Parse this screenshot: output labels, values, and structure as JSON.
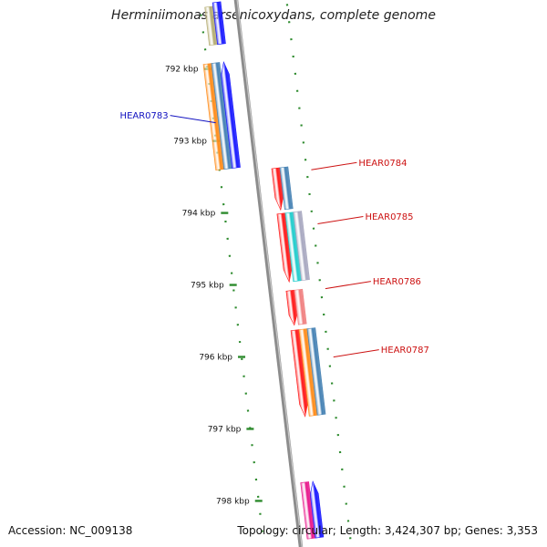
{
  "title": "Herminiimonas arsenicoxydans, complete genome",
  "footer": {
    "accession": "Accession: NC_009138",
    "summary": "Topology: circular; Length: 3,424,307 bp; Genes: 3,353"
  },
  "map": {
    "backbone_color": "#8c8c8c",
    "dot_color": "#2e8b2e",
    "ticks": [
      {
        "kbp": 792,
        "label": "792 kbp"
      },
      {
        "kbp": 793,
        "label": "793 kbp"
      },
      {
        "kbp": 794,
        "label": "794 kbp"
      },
      {
        "kbp": 795,
        "label": "795 kbp"
      },
      {
        "kbp": 796,
        "label": "796 kbp"
      },
      {
        "kbp": 797,
        "label": "797 kbp"
      },
      {
        "kbp": 798,
        "label": "798 kbp"
      }
    ],
    "labels": [
      {
        "text": "HEAR0783",
        "color": "#1010c0",
        "side": "left",
        "kbp": 792.75
      },
      {
        "text": "HEAR0784",
        "color": "#cc1111",
        "side": "right",
        "kbp": 793.55
      },
      {
        "text": "HEAR0785",
        "color": "#cc1111",
        "side": "right",
        "kbp": 794.3
      },
      {
        "text": "HEAR0786",
        "color": "#cc1111",
        "side": "right",
        "kbp": 795.2
      },
      {
        "text": "HEAR0787",
        "color": "#cc1111",
        "side": "right",
        "kbp": 796.15
      }
    ],
    "features": [
      {
        "name": "olive-bar",
        "side": "left",
        "lane": 2,
        "start": 791.15,
        "end": 791.68,
        "color": "#b5ad73",
        "arrow": false
      },
      {
        "name": "blue-arrow-top",
        "side": "left",
        "lane": 1,
        "start": 791.1,
        "end": 791.68,
        "color": "#1a1aff",
        "arrow": false
      },
      {
        "name": "orange-bar",
        "side": "left",
        "lane": 3,
        "start": 791.93,
        "end": 793.4,
        "color": "#ff8c1a",
        "arrow": false
      },
      {
        "name": "steelblue-bar",
        "side": "left",
        "lane": 2,
        "start": 791.93,
        "end": 793.4,
        "color": "#4682b4",
        "arrow": false
      },
      {
        "name": "blue-arrow-hear0783",
        "side": "left",
        "lane": 1,
        "start": 791.93,
        "end": 793.4,
        "color": "#1a1aff",
        "arrow": "up"
      },
      {
        "name": "red-arrow-hear0784",
        "side": "right",
        "lane": 1,
        "start": 793.47,
        "end": 794.05,
        "color": "#ff1a1a",
        "arrow": "down"
      },
      {
        "name": "steelblue-bar-hear0784",
        "side": "right",
        "lane": 2,
        "start": 793.47,
        "end": 794.05,
        "color": "#4682b4",
        "arrow": false
      },
      {
        "name": "red-arrow-hear0785",
        "side": "right",
        "lane": 1,
        "start": 794.1,
        "end": 795.05,
        "color": "#ff1a1a",
        "arrow": "down"
      },
      {
        "name": "cyan-bar-hear0785",
        "side": "right",
        "lane": 2,
        "start": 794.1,
        "end": 795.05,
        "color": "#22cccc",
        "arrow": false
      },
      {
        "name": "gray-bar-hear0785",
        "side": "right",
        "lane": 3,
        "start": 794.1,
        "end": 795.05,
        "color": "#a8a8c0",
        "arrow": false
      },
      {
        "name": "red-arrow-hear0786",
        "side": "right",
        "lane": 1,
        "start": 795.17,
        "end": 795.65,
        "color": "#ff1a1a",
        "arrow": "down"
      },
      {
        "name": "pink-bar-hear0786",
        "side": "right",
        "lane": 2,
        "start": 795.17,
        "end": 795.65,
        "color": "#f08080",
        "arrow": false
      },
      {
        "name": "red-arrow-hear0787",
        "side": "right",
        "lane": 1,
        "start": 795.72,
        "end": 796.92,
        "color": "#ff1a1a",
        "arrow": "down"
      },
      {
        "name": "orange-bar-hear0787",
        "side": "right",
        "lane": 2,
        "start": 795.72,
        "end": 796.92,
        "color": "#ff8c1a",
        "arrow": false
      },
      {
        "name": "steelblue-bar-hear0787",
        "side": "right",
        "lane": 3,
        "start": 795.72,
        "end": 796.92,
        "color": "#4682b4",
        "arrow": false
      },
      {
        "name": "magenta-bar-bottom",
        "side": "right",
        "lane": 0,
        "start": 797.82,
        "end": 798.6,
        "color": "#e8198c",
        "arrow": false
      },
      {
        "name": "blue-arrow-bottom",
        "side": "right",
        "lane": 1,
        "start": 797.82,
        "end": 798.6,
        "color": "#1a1aff",
        "arrow": "up"
      }
    ]
  }
}
